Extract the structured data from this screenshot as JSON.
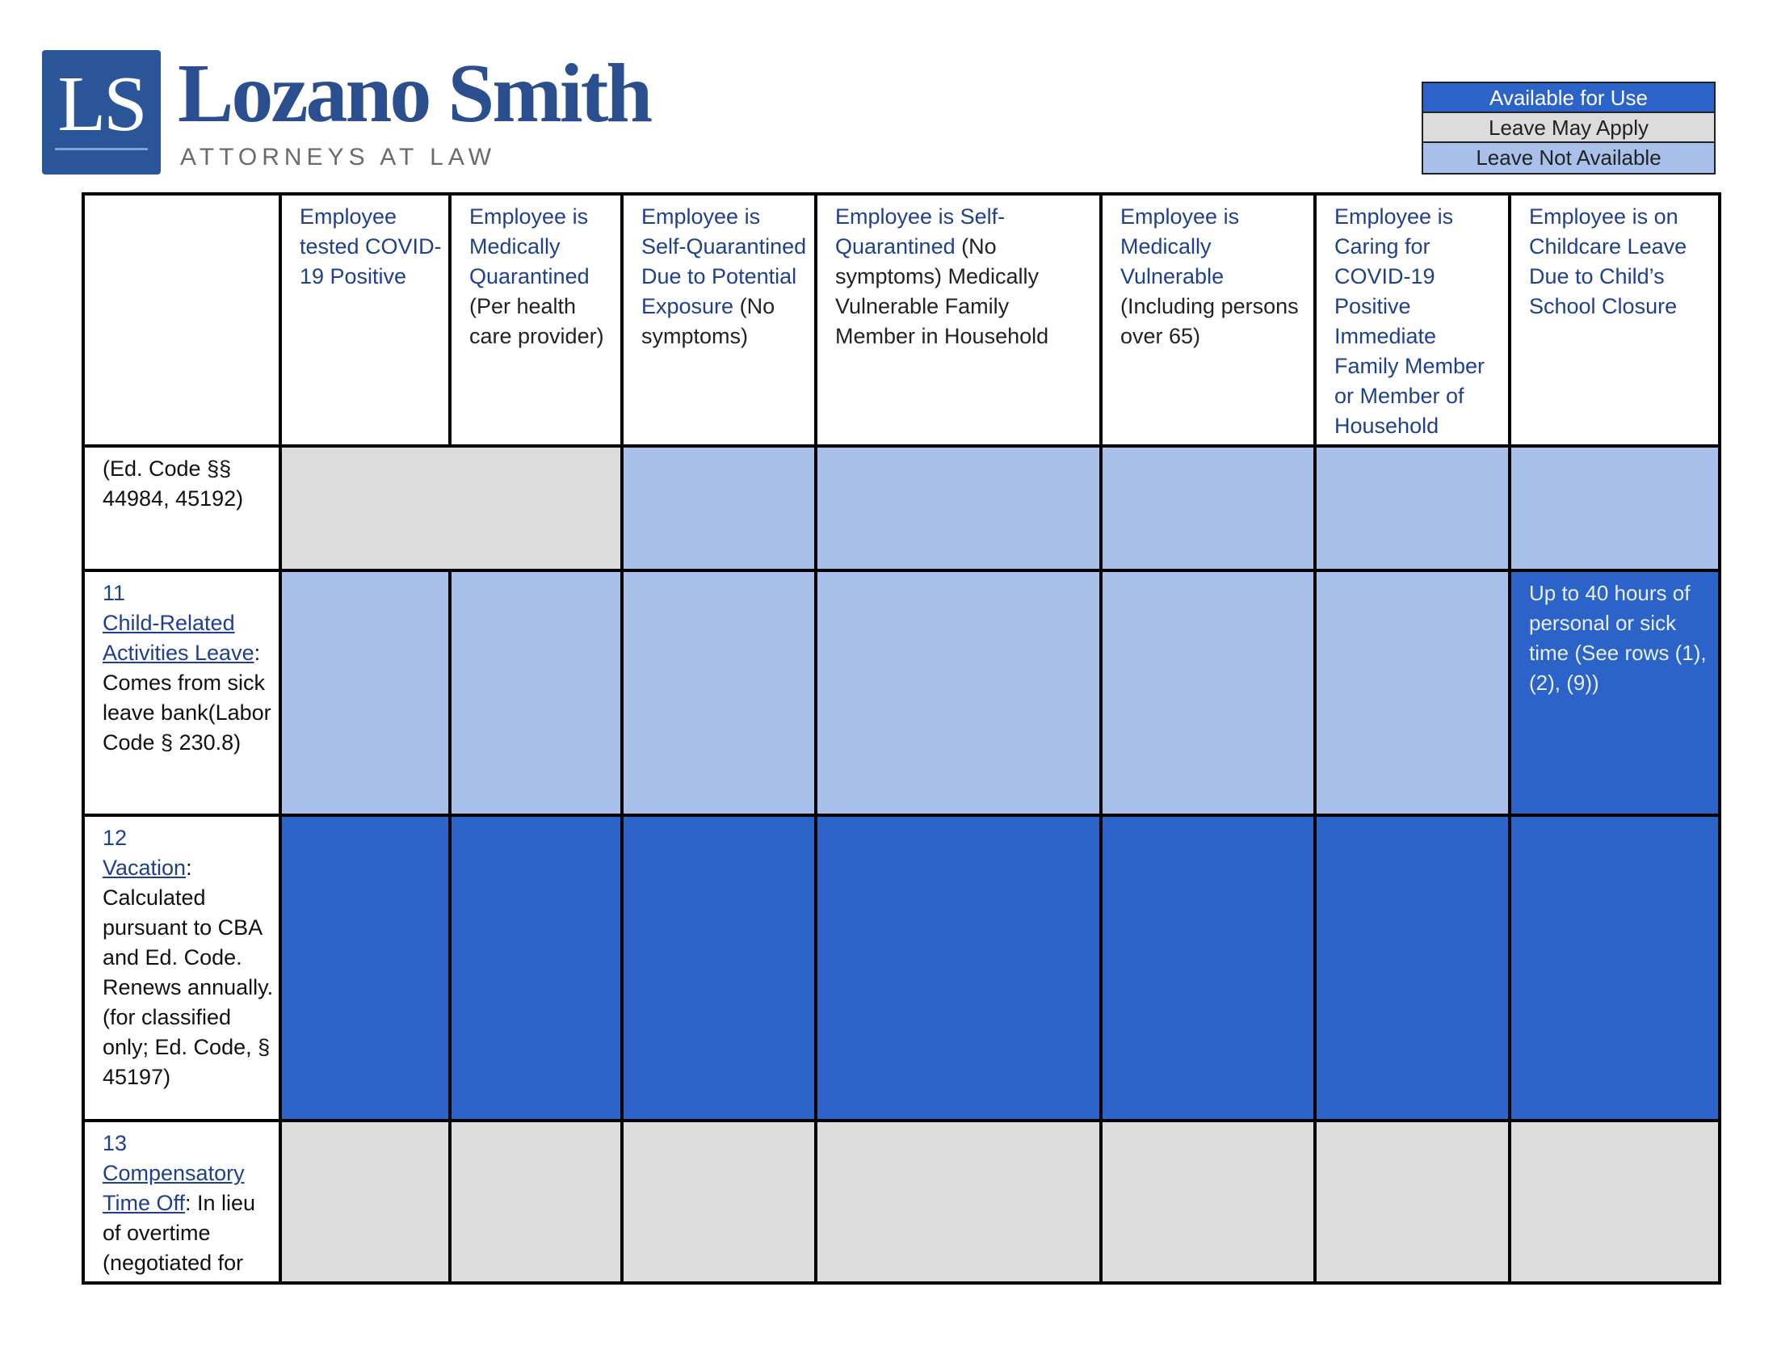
{
  "brand": {
    "mark": "LS",
    "name": "Lozano Smith",
    "tagline": "ATTORNEYS AT LAW"
  },
  "legend": {
    "available": "Available for Use",
    "may_apply": "Leave May Apply",
    "not_available": "Leave Not Available"
  },
  "colors": {
    "available": "#2c63c9",
    "may_apply": "#dcdcdc",
    "not_available": "#a9c1ea",
    "brand": "#2b4f8e"
  },
  "columns": [
    {
      "title": "Employee tested COVID-19 Positive",
      "detail": ""
    },
    {
      "title": "Employee is Medically Quarantined",
      "detail": "(Per health care provider)"
    },
    {
      "title": "Employee is Self-Quarantined Due to Potential Exposure",
      "detail": "(No symptoms)"
    },
    {
      "title": "Employee is Self-Quarantined",
      "detail": "(No symptoms) Medically Vulnerable Family Member in Household"
    },
    {
      "title": "Employee is Medically Vulnerable",
      "detail": "(Including persons over 65)"
    },
    {
      "title": "Employee is Caring for COVID-19 Positive Immediate Family Member or Member of Household",
      "detail": ""
    },
    {
      "title": "Employee is on Childcare Leave Due to Child’s School Closure",
      "detail": ""
    }
  ],
  "rows": [
    {
      "number": "",
      "link": "",
      "text": "(Ed. Code §§ 44984, 45192)",
      "cells": [
        "may_apply (spans 2 columns)",
        "not_available",
        "not_available",
        "not_available",
        "not_available",
        "not_available"
      ]
    },
    {
      "number": "11",
      "link": "Child-Related Activities Leave",
      "text": ": Comes from sick leave bank(Labor Code § 230.8)",
      "cells": [
        "not_available",
        "not_available",
        "not_available",
        "not_available",
        "not_available",
        "not_available",
        "available"
      ],
      "notes": {
        "col7": "Up to 40 hours of personal or sick time (See rows (1), (2), (9))"
      }
    },
    {
      "number": "12",
      "link": "Vacation",
      "text": ": Calculated pursuant to CBA and Ed. Code. Renews annually. (for classified only; Ed. Code, § 45197)",
      "cells": [
        "available",
        "available",
        "available",
        "available",
        "available",
        "available",
        "available"
      ]
    },
    {
      "number": "13",
      "link": "Compensatory Time Off",
      "text": ": In lieu of overtime (negotiated for",
      "cells": [
        "may_apply",
        "may_apply",
        "may_apply",
        "may_apply",
        "may_apply",
        "may_apply",
        "may_apply"
      ]
    }
  ]
}
